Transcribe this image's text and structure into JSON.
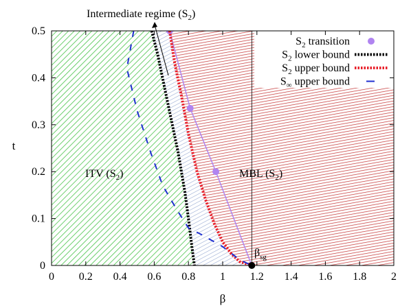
{
  "chart_data": {
    "type": "line",
    "xlabel": "β",
    "ylabel": "t",
    "xlim": [
      0,
      2
    ],
    "ylim": [
      0,
      0.5
    ],
    "x_ticks": [
      "0",
      "0.2",
      "0.4",
      "0.6",
      "0.8",
      "1",
      "1.2",
      "1.4",
      "1.6",
      "1.8",
      "2"
    ],
    "y_ticks": [
      "0",
      "0.1",
      "0.2",
      "0.3",
      "0.4",
      "0.5"
    ],
    "grid": false,
    "legend_position": "top-right",
    "annotations": {
      "intermediate": {
        "text": "Intermediate regime (S",
        "sub": "2",
        "close": ")"
      },
      "itv": {
        "text": "ITV (S",
        "sub": "2",
        "close": ")"
      },
      "mbl": {
        "text": "MBL (S",
        "sub": "2",
        "close": ")"
      },
      "beta_sg": {
        "text": "β",
        "sub": "sg"
      }
    },
    "beta_sg": {
      "x": 1.17,
      "y": 0.0
    },
    "series": [
      {
        "name": "S2 transition",
        "legend": {
          "main": "S",
          "sub": "2",
          "rest": " transition"
        },
        "style": "points",
        "color": "#b084f0",
        "points": [
          [
            0.69,
            0.5
          ],
          [
            0.81,
            0.335
          ],
          [
            0.96,
            0.2
          ],
          [
            1.17,
            0.0
          ]
        ]
      },
      {
        "name": "S2 lower bound",
        "legend": {
          "main": "S",
          "sub": "2",
          "rest": " lower bound"
        },
        "style": "dotted-thick",
        "color": "#000000",
        "points": [
          [
            0.585,
            0.5
          ],
          [
            0.62,
            0.45
          ],
          [
            0.66,
            0.38
          ],
          [
            0.7,
            0.31
          ],
          [
            0.74,
            0.24
          ],
          [
            0.78,
            0.155
          ],
          [
            0.8,
            0.1
          ],
          [
            0.82,
            0.04
          ],
          [
            0.835,
            0.0
          ]
        ]
      },
      {
        "name": "S2 upper bound",
        "legend": {
          "main": "S",
          "sub": "2",
          "rest": " upper bound"
        },
        "style": "dotted-thick",
        "color": "#e8202a",
        "points": [
          [
            0.69,
            0.5
          ],
          [
            0.72,
            0.43
          ],
          [
            0.76,
            0.36
          ],
          [
            0.8,
            0.28
          ],
          [
            0.85,
            0.2
          ],
          [
            0.9,
            0.14
          ],
          [
            0.95,
            0.09
          ],
          [
            1.0,
            0.05
          ],
          [
            1.05,
            0.025
          ],
          [
            1.1,
            0.008
          ],
          [
            1.17,
            0.0
          ]
        ]
      },
      {
        "name": "S∞ upper bound",
        "legend": {
          "main": "S",
          "sub": "∞",
          "rest": " upper bound"
        },
        "style": "dashed",
        "color": "#1f2fd0",
        "points": [
          [
            0.48,
            0.5
          ],
          [
            0.44,
            0.42
          ],
          [
            0.5,
            0.33
          ],
          [
            0.58,
            0.24
          ],
          [
            0.65,
            0.17
          ],
          [
            0.73,
            0.12
          ],
          [
            0.8,
            0.08
          ],
          [
            0.88,
            0.065
          ],
          [
            1.0,
            0.04
          ],
          [
            1.1,
            0.012
          ],
          [
            1.17,
            0.0
          ]
        ]
      }
    ]
  }
}
